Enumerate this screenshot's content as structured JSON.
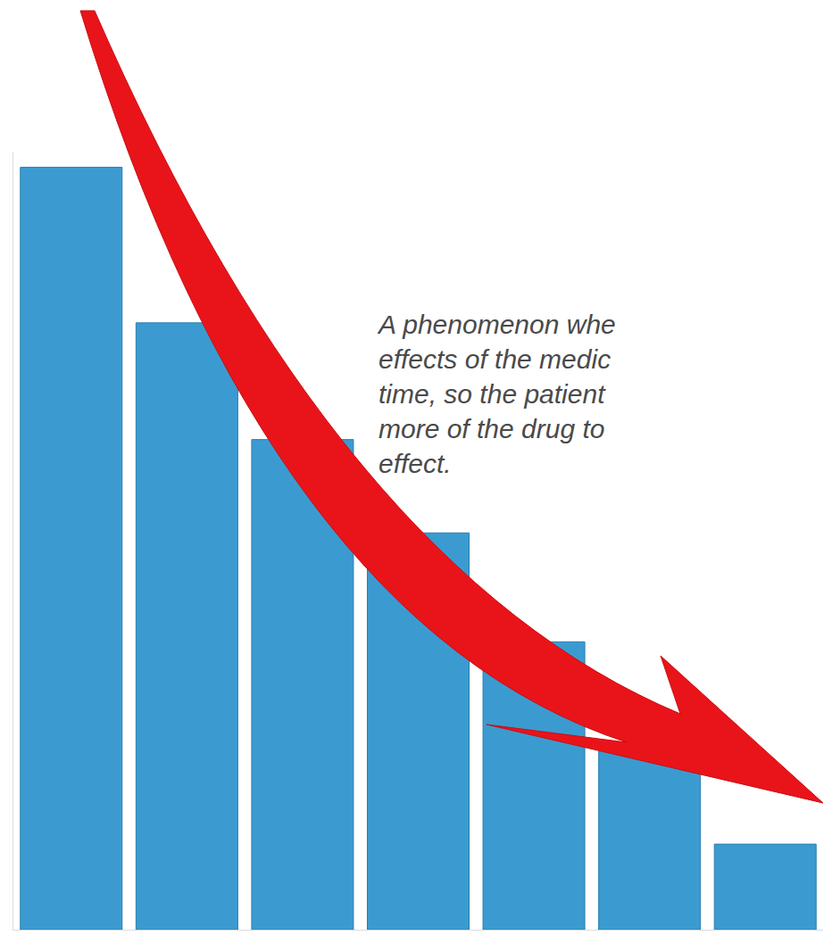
{
  "chart_data": {
    "type": "bar",
    "annotations": [
      "A phenomenon whe",
      "effects of the medic",
      "time, so the patient",
      "more of the drug to",
      "effect."
    ],
    "categories": [
      null,
      null,
      null,
      null,
      null,
      null,
      null
    ],
    "values": [
      98,
      78,
      63,
      51,
      37,
      23,
      11
    ],
    "color": "#3b9bd0",
    "ylim": [
      0,
      100
    ],
    "yticks": [],
    "grid": false,
    "tick_labels": false
  }
}
